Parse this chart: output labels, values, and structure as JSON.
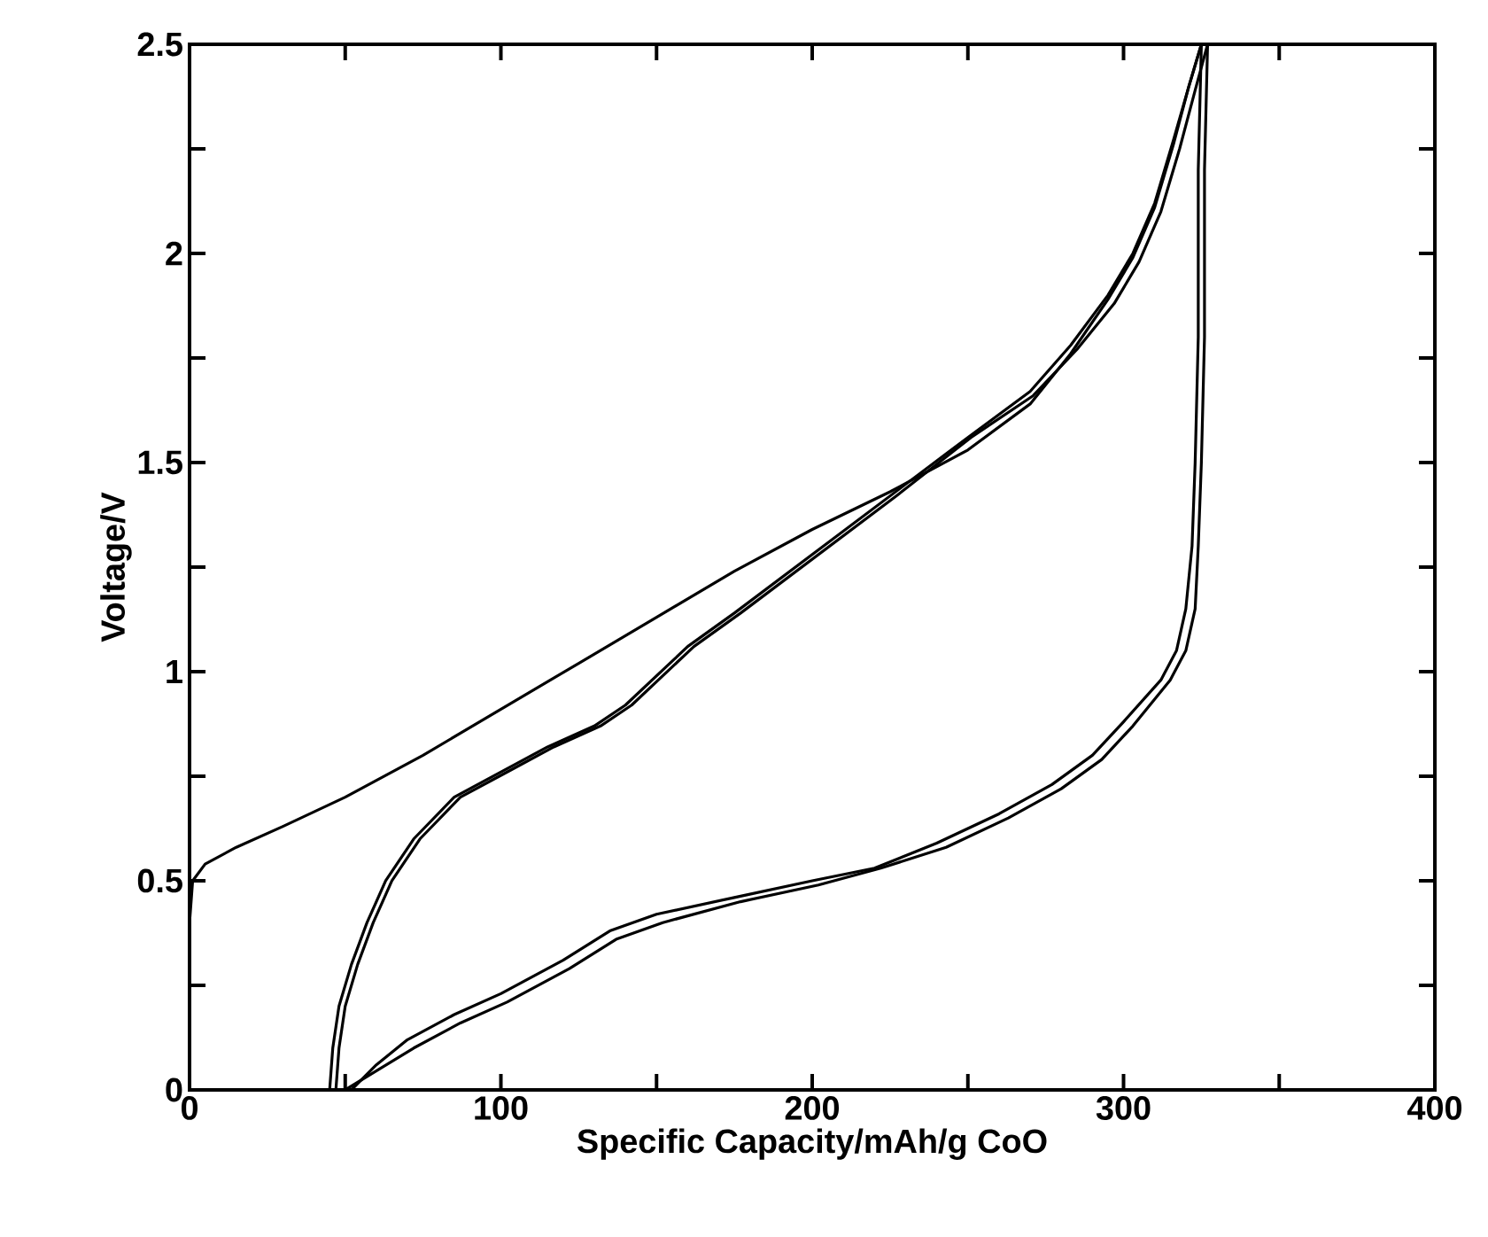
{
  "chart_data": {
    "type": "line",
    "xlabel": "Specific Capacity/mAh/g CoO",
    "ylabel": "Voltage/V",
    "xlim": [
      0,
      400
    ],
    "ylim": [
      0,
      2.5
    ],
    "xticks": [
      0,
      {
        "value": 50,
        "label": null
      },
      100,
      {
        "value": 150,
        "label": null
      },
      200,
      {
        "value": 250,
        "label": null
      },
      300,
      {
        "value": 350,
        "label": null
      },
      400
    ],
    "yticks": [
      0,
      {
        "value": 0.25,
        "label": null
      },
      0.5,
      {
        "value": 0.75,
        "label": null
      },
      1,
      {
        "value": 1.25,
        "label": null
      },
      1.5,
      {
        "value": 1.75,
        "label": null
      },
      2,
      {
        "value": 2.25,
        "label": null
      },
      2.5
    ],
    "marker": "none",
    "line_style": "solid",
    "series": [
      {
        "color": "#000000",
        "x": [
          0,
          1,
          5,
          15,
          30,
          50,
          75,
          100,
          125,
          150,
          175,
          200,
          225,
          250,
          270,
          283,
          295,
          303,
          310,
          316,
          321,
          325
        ],
        "values": [
          0.4,
          0.5,
          0.54,
          0.58,
          0.63,
          0.7,
          0.8,
          0.91,
          1.02,
          1.13,
          1.24,
          1.34,
          1.43,
          1.53,
          1.64,
          1.76,
          1.89,
          1.99,
          2.11,
          2.26,
          2.4,
          2.5
        ]
      },
      {
        "color": "#000000",
        "x": [
          325,
          324,
          324,
          323,
          322,
          320,
          317,
          312,
          300,
          290,
          277,
          260,
          240,
          220,
          200,
          175,
          150,
          135,
          120,
          100,
          85,
          70,
          60,
          52
        ],
        "values": [
          2.5,
          2.2,
          1.8,
          1.5,
          1.3,
          1.15,
          1.05,
          0.98,
          0.88,
          0.8,
          0.73,
          0.66,
          0.59,
          0.53,
          0.5,
          0.46,
          0.42,
          0.38,
          0.31,
          0.23,
          0.18,
          0.12,
          0.06,
          0
        ]
      },
      {
        "color": "#000000",
        "x": [
          327,
          326,
          326,
          325,
          324,
          323,
          320,
          315,
          303,
          293,
          280,
          263,
          243,
          222,
          202,
          177,
          152,
          137,
          122,
          102,
          87,
          72,
          61,
          50
        ],
        "values": [
          2.5,
          2.2,
          1.8,
          1.5,
          1.3,
          1.15,
          1.05,
          0.98,
          0.87,
          0.79,
          0.72,
          0.65,
          0.58,
          0.53,
          0.49,
          0.45,
          0.4,
          0.36,
          0.29,
          0.21,
          0.16,
          0.1,
          0.05,
          0
        ]
      },
      {
        "color": "#000000",
        "x": [
          45,
          46,
          48,
          52,
          57,
          63,
          72,
          85,
          100,
          115,
          130,
          140,
          150,
          160,
          175,
          200,
          225,
          250,
          270,
          283,
          295,
          303,
          310,
          316,
          321,
          325
        ],
        "values": [
          0,
          0.1,
          0.2,
          0.3,
          0.4,
          0.5,
          0.6,
          0.7,
          0.76,
          0.82,
          0.87,
          0.92,
          0.99,
          1.06,
          1.14,
          1.28,
          1.42,
          1.56,
          1.67,
          1.78,
          1.9,
          2.0,
          2.12,
          2.27,
          2.4,
          2.5
        ]
      },
      {
        "color": "#000000",
        "x": [
          47,
          48,
          50,
          54,
          59,
          65,
          74,
          87,
          102,
          117,
          132,
          142,
          152,
          162,
          177,
          202,
          227,
          251,
          271,
          285,
          297,
          305,
          312,
          318,
          323,
          327
        ],
        "values": [
          0,
          0.1,
          0.2,
          0.3,
          0.4,
          0.5,
          0.6,
          0.7,
          0.76,
          0.82,
          0.87,
          0.92,
          0.99,
          1.06,
          1.14,
          1.28,
          1.42,
          1.56,
          1.66,
          1.77,
          1.88,
          1.98,
          2.1,
          2.25,
          2.39,
          2.5
        ]
      }
    ]
  }
}
